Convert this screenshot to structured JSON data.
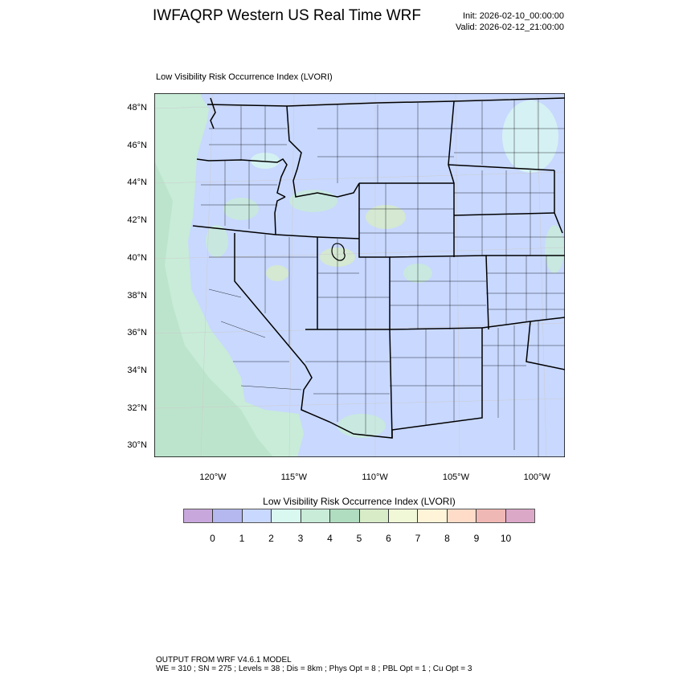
{
  "title": "IWFAQRP Western US Real Time WRF",
  "init": "Init: 2026-02-10_00:00:00",
  "valid": "Valid: 2026-02-12_21:00:00",
  "subtitle": "Low Visibility Risk Occurrence Index   (LVORI)",
  "map": {
    "lat_labels": [
      "48°N",
      "46°N",
      "44°N",
      "42°N",
      "40°N",
      "38°N",
      "36°N",
      "34°N",
      "32°N",
      "30°N"
    ],
    "lon_labels": [
      "120°W",
      "115°W",
      "110°W",
      "105°W",
      "100°W"
    ],
    "land_color": "#c8d8ff",
    "ocean_color": "#c8ecd8"
  },
  "colorbar": {
    "title": "Low Visibility Risk Occurrence Index  (LVORI)",
    "labels": [
      "0",
      "1",
      "2",
      "3",
      "4",
      "5",
      "6",
      "7",
      "8",
      "9",
      "10"
    ],
    "colors": [
      "#c8a8dc",
      "#b4b8ee",
      "#c8d8ff",
      "#d8f8f0",
      "#c8ecd8",
      "#b0dcc0",
      "#d8ecc8",
      "#f0f8d8",
      "#fff4d8",
      "#ffdcc8",
      "#f0b8b4",
      "#dca8c8"
    ]
  },
  "footer": {
    "line1": "OUTPUT FROM WRF V4.6.1 MODEL",
    "line2": "WE = 310 ; SN = 275 ; Levels = 38 ; Dis = 8km ; Phys Opt = 8 ; PBL Opt = 1 ; Cu Opt = 3"
  }
}
